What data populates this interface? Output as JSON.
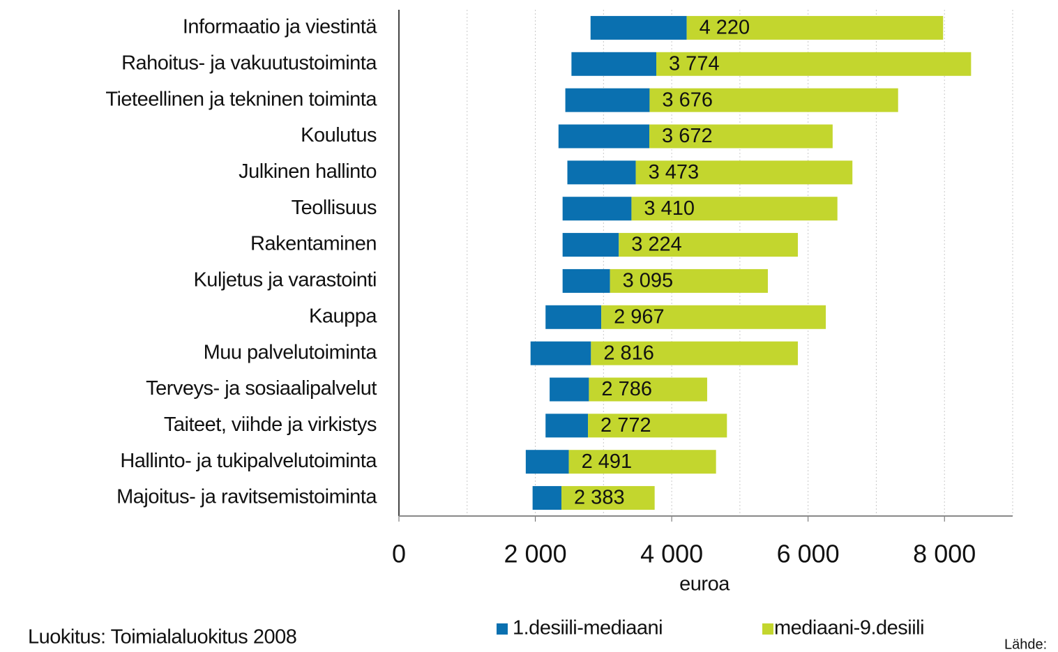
{
  "chart_data": {
    "type": "floating_bar",
    "orientation": "horizontal",
    "categories": [
      "Informaatio ja viestintä",
      "Rahoitus- ja vakuutustoiminta",
      "Tieteellinen ja tekninen toiminta",
      "Koulutus",
      "Julkinen hallinto",
      "Teollisuus",
      "Rakentaminen",
      "Kuljetus ja varastointi",
      "Kauppa",
      "Muu palvelutoiminta",
      "Terveys- ja sosiaalipalvelut",
      "Taiteet, viihde ja virkistys",
      "Hallinto- ja tukipalvelutoiminta",
      "Majoitus- ja ravitsemistoiminta"
    ],
    "medians": [
      4220,
      3774,
      3676,
      3672,
      3473,
      3410,
      3224,
      3095,
      2967,
      2816,
      2786,
      2772,
      2491,
      2383
    ],
    "median_labels": [
      "4 220",
      "3 774",
      "3 676",
      "3 672",
      "3 473",
      "3 410",
      "3 224",
      "3 095",
      "2 967",
      "2 816",
      "2 786",
      "2 772",
      "2 491",
      "2 383"
    ],
    "series": [
      {
        "name": "1.desiili-mediaani",
        "color": "#0a70b0",
        "values": [
          2810,
          2530,
          2440,
          2340,
          2470,
          2400,
          2400,
          2400,
          2150,
          1930,
          2210,
          2150,
          1860,
          1960
        ]
      },
      {
        "name": "mediaani-9.desiili",
        "color": "#c3d62e",
        "values": [
          7980,
          8390,
          7320,
          6360,
          6650,
          6430,
          5850,
          5410,
          6260,
          5850,
          4520,
          4810,
          4650,
          3750
        ]
      }
    ],
    "xlabel": "euroa",
    "xlim": [
      0,
      9000
    ],
    "xticks": [
      0,
      {
        "value": 2000,
        "label": "2 000"
      },
      {
        "value": 4000,
        "label": "4 000"
      },
      {
        "value": 6000,
        "label": "6 000"
      },
      {
        "value": 8000,
        "label": "8 000"
      }
    ],
    "minor_xticks": [
      1000,
      3000,
      5000,
      7000,
      9000
    ],
    "grid": true,
    "note": "Luokitus: Toimialaluokitus 2008",
    "source": "Lähde:"
  }
}
